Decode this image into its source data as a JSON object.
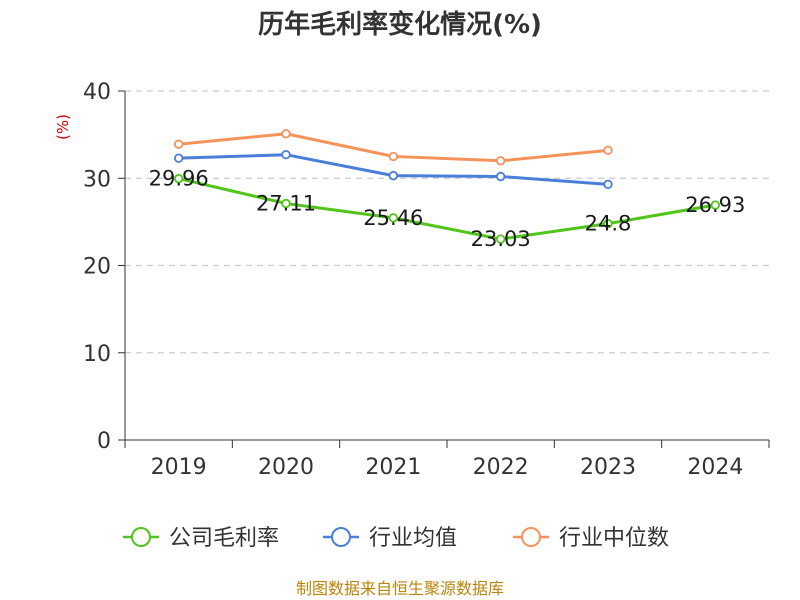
{
  "chart_data": {
    "type": "line",
    "title": "历年毛利率变化情况(%)",
    "ylabel": "(%)",
    "xlabel": "",
    "categories": [
      "2019",
      "2020",
      "2021",
      "2022",
      "2023",
      "2024"
    ],
    "ylim": [
      0,
      40
    ],
    "yticks": [
      0,
      10,
      20,
      30,
      40
    ],
    "grid": true,
    "legend_position": "bottom",
    "series": [
      {
        "name": "公司毛利率",
        "color": "#52c41a",
        "values": [
          29.96,
          27.11,
          25.46,
          23.03,
          24.8,
          26.93
        ],
        "show_labels": true,
        "labels": [
          "29.96",
          "27.11",
          "25.46",
          "23.03",
          "24.8",
          "26.93"
        ]
      },
      {
        "name": "行业均值",
        "color": "#4a7fd9",
        "values": [
          32.3,
          32.7,
          30.3,
          30.2,
          29.3,
          null
        ],
        "show_labels": false
      },
      {
        "name": "行业中位数",
        "color": "#f5935a",
        "values": [
          33.9,
          35.1,
          32.5,
          32.0,
          33.2,
          null
        ],
        "show_labels": false
      }
    ]
  },
  "footer": {
    "source": "制图数据来自恒生聚源数据库"
  }
}
